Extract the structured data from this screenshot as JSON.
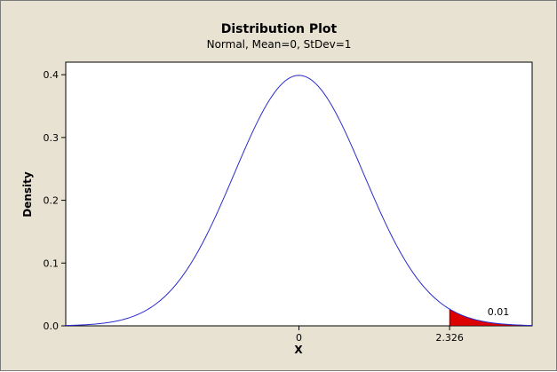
{
  "chart_data": {
    "type": "area",
    "title": "Distribution Plot",
    "subtitle": "Normal, Mean=0, StDev=1",
    "distribution": {
      "family": "Normal",
      "mean": 0,
      "stdev": 1
    },
    "xlabel": "X",
    "ylabel": "Density",
    "xlim": [
      -3.6,
      3.6
    ],
    "ylim": [
      0,
      0.42
    ],
    "x_ticks": [
      {
        "value": 0,
        "label": "0"
      },
      {
        "value": 2.326,
        "label": "2.326"
      }
    ],
    "y_ticks": [
      {
        "value": 0.0,
        "label": "0.0"
      },
      {
        "value": 0.1,
        "label": "0.1"
      },
      {
        "value": 0.2,
        "label": "0.2"
      },
      {
        "value": 0.3,
        "label": "0.3"
      },
      {
        "value": 0.4,
        "label": "0.4"
      }
    ],
    "shaded_region": {
      "from": 2.326,
      "to": 3.6,
      "probability_label": "0.01"
    },
    "grid": false,
    "legend": "none",
    "colors": {
      "curve": "#2b2bcc",
      "shade": "#dd0000",
      "outer_background": "#e8e2d2",
      "plot_background": "#ffffff"
    }
  }
}
